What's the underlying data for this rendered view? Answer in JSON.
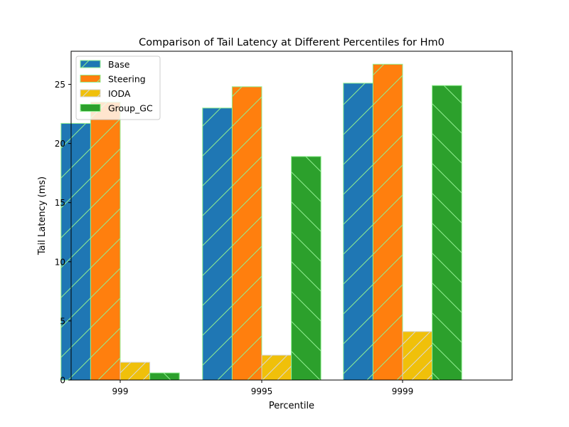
{
  "chart_data": {
    "type": "bar",
    "title": "Comparison of Tail Latency at Different Percentiles for Hm0",
    "xlabel": "Percentile",
    "ylabel": "Tail Latency (ms)",
    "categories": [
      "999",
      "9995",
      "9999"
    ],
    "ylim": [
      0,
      27.8
    ],
    "yticks": [
      0,
      5,
      10,
      15,
      20,
      25
    ],
    "grid": false,
    "legend_position": "top-left",
    "series": [
      {
        "name": "Base",
        "values": [
          21.7,
          23.0,
          25.1
        ],
        "color": "#1f77b4",
        "hatch": "forward-diagonal",
        "edge_color": "#90ee90"
      },
      {
        "name": "Steering",
        "values": [
          23.5,
          24.8,
          26.7
        ],
        "color": "#ff7f0e",
        "hatch": "forward-diagonal",
        "edge_color": "#90ee90"
      },
      {
        "name": "IODA",
        "values": [
          1.5,
          2.1,
          4.1
        ],
        "color": "#f0c00a",
        "hatch": "forward-diagonal",
        "edge_color": "#d3d3d3"
      },
      {
        "name": "Group_GC",
        "values": [
          0.6,
          18.9,
          24.9
        ],
        "color": "#2ca02c",
        "hatch": "back-diagonal",
        "edge_color": "#90ee90"
      }
    ]
  }
}
